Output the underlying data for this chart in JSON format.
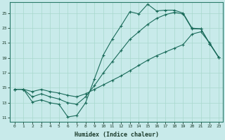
{
  "xlabel": "Humidex (Indice chaleur)",
  "bg_color": "#c8eaea",
  "line_color": "#1a6b5a",
  "grid_color": "#a8d8cc",
  "xmin": -0.5,
  "xmax": 23.5,
  "ymin": 10.5,
  "ymax": 26.5,
  "xticks": [
    0,
    1,
    2,
    3,
    4,
    5,
    6,
    7,
    8,
    9,
    10,
    11,
    12,
    13,
    14,
    15,
    16,
    17,
    18,
    19,
    20,
    21,
    22,
    23
  ],
  "yticks": [
    11,
    13,
    15,
    17,
    19,
    21,
    23,
    25
  ],
  "lines": [
    {
      "x": [
        0,
        1,
        2,
        3,
        4,
        5,
        6,
        7,
        8,
        9,
        10,
        11,
        12,
        13,
        14,
        15,
        16,
        17,
        18,
        19,
        20,
        21,
        22,
        23
      ],
      "y": [
        14.8,
        14.8,
        13.1,
        13.4,
        13.0,
        12.8,
        11.1,
        11.3,
        13.0,
        16.2,
        19.4,
        21.5,
        23.3,
        25.2,
        24.9,
        26.2,
        25.3,
        25.4,
        25.4,
        25.0,
        23.0,
        22.9,
        20.9,
        19.1
      ]
    },
    {
      "x": [
        0,
        1,
        2,
        3,
        4,
        5,
        6,
        7,
        8,
        9,
        10,
        11,
        12,
        13,
        14,
        15,
        16,
        17,
        18,
        19,
        20,
        21,
        22,
        23
      ],
      "y": [
        14.8,
        14.8,
        13.8,
        14.2,
        13.8,
        13.5,
        13.0,
        12.8,
        13.8,
        15.3,
        17.0,
        18.5,
        20.0,
        21.5,
        22.5,
        23.5,
        24.3,
        24.8,
        25.1,
        24.9,
        22.9,
        22.9,
        20.9,
        19.1
      ]
    },
    {
      "x": [
        0,
        1,
        2,
        3,
        4,
        5,
        6,
        7,
        8,
        9,
        10,
        11,
        12,
        13,
        14,
        15,
        16,
        17,
        18,
        19,
        20,
        21,
        22,
        23
      ],
      "y": [
        14.8,
        14.8,
        14.5,
        14.8,
        14.5,
        14.3,
        14.0,
        13.8,
        14.2,
        14.8,
        15.4,
        16.0,
        16.6,
        17.3,
        18.0,
        18.7,
        19.3,
        19.8,
        20.3,
        20.8,
        22.2,
        22.5,
        21.0,
        19.1
      ]
    }
  ]
}
